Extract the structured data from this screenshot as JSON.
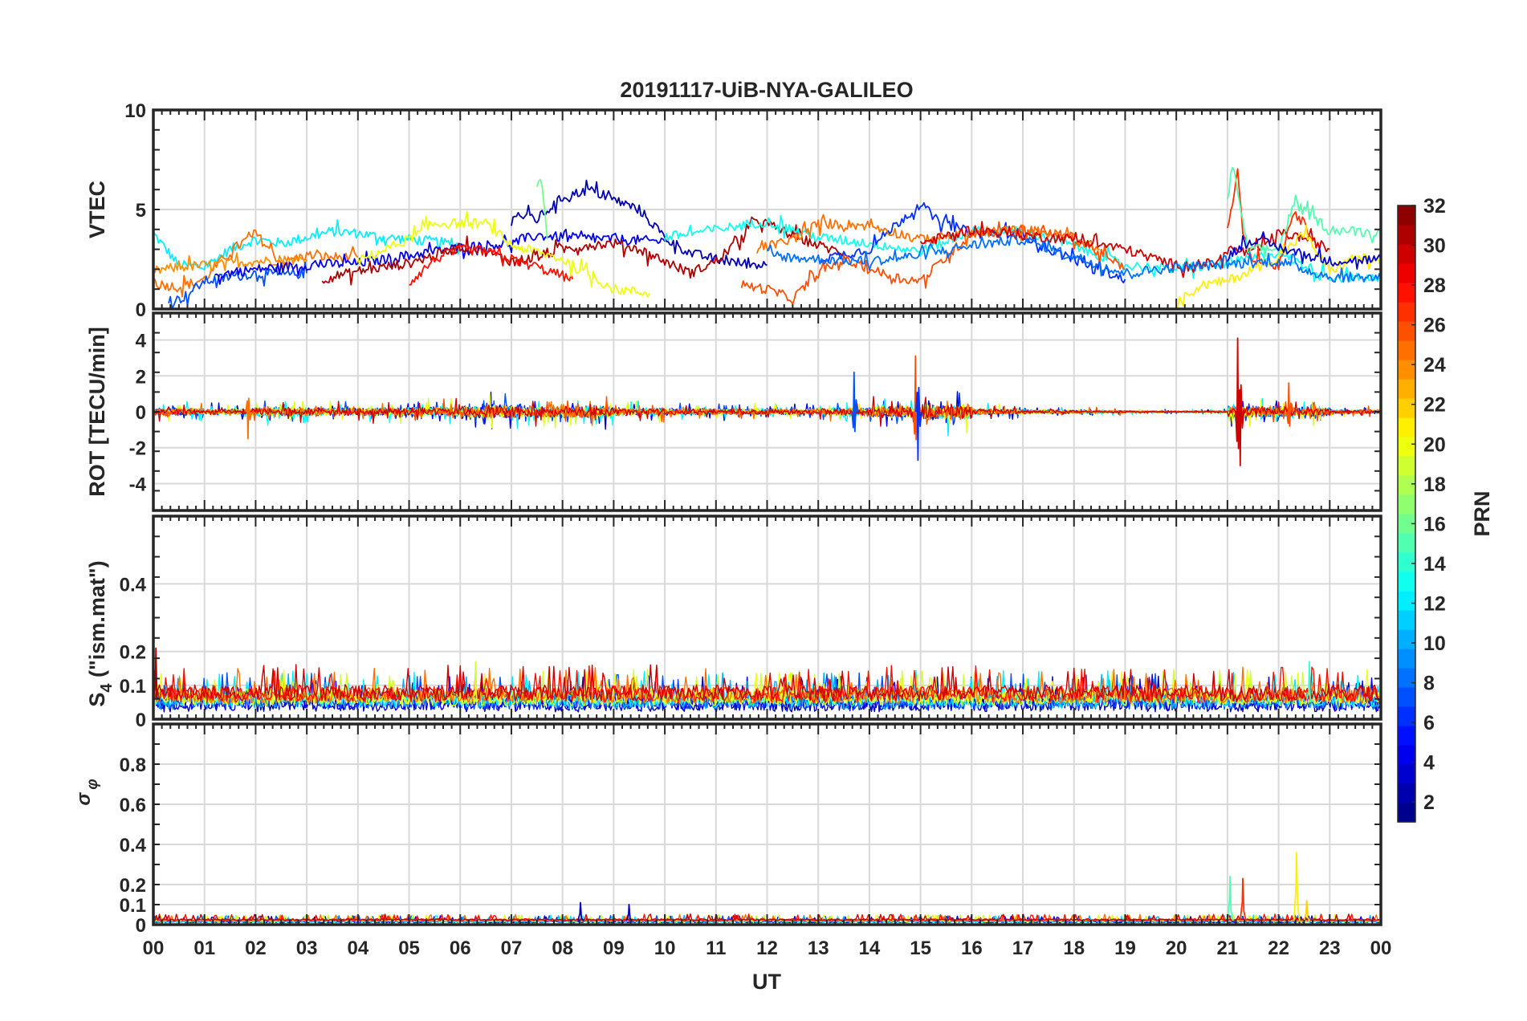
{
  "chart_data": {
    "type": "line",
    "title": "20191117-UiB-NYA-GALILEO",
    "xlabel": "UT",
    "xlim": [
      0,
      24
    ],
    "x_tick_labels": [
      "00",
      "01",
      "02",
      "03",
      "04",
      "05",
      "06",
      "07",
      "08",
      "09",
      "10",
      "11",
      "12",
      "13",
      "14",
      "15",
      "16",
      "17",
      "18",
      "19",
      "20",
      "21",
      "22",
      "23",
      "00"
    ],
    "grid": true,
    "colorbar": {
      "label": "PRN",
      "range": [
        1,
        32
      ],
      "levels": 32,
      "colormap": "jet",
      "ticks": [
        "2",
        "4",
        "6",
        "8",
        "10",
        "12",
        "14",
        "16",
        "18",
        "20",
        "22",
        "24",
        "26",
        "28",
        "30",
        "32"
      ]
    },
    "panels": [
      {
        "id": "vtec",
        "ylabel": "VTEC",
        "ylim": [
          0,
          10
        ],
        "yticks": [
          "0",
          "5",
          "10"
        ],
        "ytick_values": [
          0,
          5,
          10
        ],
        "series": [
          {
            "prn": 12,
            "x": [
              0,
              0.5,
              1,
              1.5,
              2,
              2.5,
              3,
              3.5,
              4,
              4.5,
              5,
              5.5,
              6
            ],
            "y": [
              3.8,
              2.2,
              2.1,
              3.0,
              3.5,
              3.3,
              3.6,
              3.9,
              3.8,
              3.6,
              3.5,
              3.4,
              3.2
            ]
          },
          {
            "prn": 25,
            "x": [
              0,
              0.5,
              1,
              1.5,
              2,
              2.5,
              3,
              3.5,
              4
            ],
            "y": [
              1.3,
              1.1,
              1.5,
              2.9,
              3.8,
              2.3,
              2.7,
              2.6,
              2.6
            ]
          },
          {
            "prn": 24,
            "x": [
              0,
              0.5,
              1,
              1.5,
              2,
              3
            ],
            "y": [
              1.9,
              2.1,
              2.2,
              2.3,
              2.4,
              2.5
            ]
          },
          {
            "prn": 7,
            "x": [
              0.3,
              0.6,
              1,
              1.5,
              2,
              2.5,
              3
            ],
            "y": [
              0.3,
              0.6,
              1.4,
              1.6,
              1.8,
              1.7,
              1.8
            ]
          },
          {
            "prn": 4,
            "x": [
              1.2,
              2,
              3,
              4,
              5,
              6,
              7,
              7.5,
              8,
              9,
              10
            ],
            "y": [
              1.7,
              2.0,
              2.2,
              2.3,
              2.7,
              3.1,
              3.3,
              3.7,
              3.6,
              3.5,
              3.4
            ]
          },
          {
            "prn": 2,
            "x": [
              7,
              7.5,
              8,
              8.5,
              9,
              9.5,
              10,
              10.5,
              11,
              11.5,
              12
            ],
            "y": [
              4.8,
              4.5,
              5.6,
              6.0,
              5.5,
              5.0,
              3.6,
              2.8,
              2.5,
              2.3,
              2.2
            ]
          },
          {
            "prn": 31,
            "x": [
              3.3,
              4,
              5,
              6,
              6.5,
              7,
              7.5,
              8,
              8.5,
              9,
              9.5,
              10,
              10.5,
              11,
              11.5,
              11.8,
              12.5,
              13,
              13.5
            ],
            "y": [
              1.5,
              1.9,
              2.3,
              3.1,
              2.9,
              2.4,
              2.6,
              3.0,
              3.2,
              3.3,
              3.0,
              2.4,
              1.8,
              2.4,
              3.6,
              4.5,
              3.7,
              3.2,
              2.8
            ]
          },
          {
            "prn": 28,
            "x": [
              5,
              5.5,
              6,
              6.5,
              7,
              7.5,
              8.2
            ],
            "y": [
              1.3,
              2.5,
              3.0,
              2.9,
              2.5,
              2.1,
              1.5
            ]
          },
          {
            "prn": 20,
            "x": [
              4,
              5,
              5.5,
              6.5,
              7,
              8,
              9,
              9.7
            ],
            "y": [
              2.4,
              3.5,
              4.3,
              4.3,
              3.2,
              2.5,
              1.0,
              0.8
            ]
          },
          {
            "prn": 16,
            "x": [
              7.5,
              7.6,
              7.7
            ],
            "y": [
              6.3,
              6.4,
              3.5
            ]
          },
          {
            "prn": 13,
            "x": [
              10,
              11,
              12,
              13,
              14,
              15,
              16,
              17,
              18,
              19,
              20,
              21,
              22,
              23,
              24
            ],
            "y": [
              3.6,
              4.0,
              4.4,
              3.6,
              3.3,
              2.9,
              3.9,
              3.9,
              3.2,
              2.2,
              2.0,
              2.3,
              2.8,
              1.6,
              1.5
            ]
          },
          {
            "prn": 6,
            "x": [
              13,
              14,
              14.5,
              15,
              15.3,
              16,
              17,
              17.5,
              18,
              19
            ],
            "y": [
              2.5,
              3.0,
              4.2,
              5.3,
              4.5,
              3.8,
              3.8,
              3.0,
              2.5,
              1.5
            ]
          },
          {
            "prn": 26,
            "x": [
              11.5,
              12,
              12.5,
              13,
              13.5,
              14,
              14.5,
              15,
              16,
              17,
              18,
              19
            ],
            "y": [
              1.2,
              1.0,
              0.5,
              1.8,
              2.5,
              2.0,
              1.6,
              1.4,
              3.8,
              4.0,
              3.6,
              2.0
            ]
          },
          {
            "prn": 25,
            "x": [
              11.8,
              12.5,
              13,
              14,
              15,
              16,
              17,
              18,
              18.5
            ],
            "y": [
              3.0,
              3.5,
              4.3,
              4.2,
              3.5,
              3.8,
              4.0,
              3.6,
              3.0
            ]
          },
          {
            "prn": 30,
            "x": [
              15,
              16,
              17,
              18,
              19,
              20,
              20.8,
              21,
              21.5,
              22,
              22.5,
              23
            ],
            "y": [
              3.3,
              4.0,
              3.7,
              3.5,
              3.0,
              2.2,
              2.3,
              3.0,
              2.8,
              3.8,
              3.6,
              3.0
            ]
          },
          {
            "prn": 27,
            "x": [
              21,
              21.2,
              21.3,
              21.5,
              22,
              22.3,
              22.7
            ],
            "y": [
              4.0,
              7.0,
              4.0,
              2.5,
              2.2,
              5.0,
              3.5
            ]
          },
          {
            "prn": 21,
            "x": [
              20,
              20.5,
              21,
              22,
              22.5,
              23,
              23.5,
              24
            ],
            "y": [
              0.3,
              1.2,
              1.4,
              2.6,
              3.8,
              1.9,
              2.6,
              2.4
            ]
          },
          {
            "prn": 15,
            "x": [
              21,
              21.1,
              21.4,
              22,
              22.3,
              23,
              24
            ],
            "y": [
              5.5,
              7.2,
              3.0,
              3.0,
              5.3,
              4.0,
              3.8
            ]
          },
          {
            "prn": 3,
            "x": [
              21,
              21.5,
              22,
              23,
              24
            ],
            "y": [
              2.7,
              3.5,
              3.1,
              2.4,
              2.5
            ]
          },
          {
            "prn": 8,
            "x": [
              12,
              13,
              14,
              15,
              16,
              17,
              19,
              20,
              22,
              23,
              24
            ],
            "y": [
              2.7,
              2.5,
              2.4,
              2.7,
              3.2,
              3.5,
              1.8,
              2.1,
              2.4,
              1.6,
              1.6
            ]
          }
        ]
      },
      {
        "id": "rot",
        "ylabel": "ROT [TECU/min]",
        "ylim": [
          -5.5,
          5.5
        ],
        "yticks": [
          "-4",
          "-2",
          "0",
          "2",
          "4"
        ],
        "ytick_values": [
          -4,
          -2,
          0,
          2,
          4
        ],
        "hourly_amplitude": [
          0.4,
          0.3,
          0.5,
          0.4,
          0.4,
          0.5,
          0.7,
          0.6,
          0.6,
          0.4,
          0.3,
          0.3,
          0.3,
          0.4,
          0.6,
          0.8,
          0.3,
          0.2,
          0.15,
          0.1,
          0.1,
          0.6,
          0.5,
          0.2
        ],
        "spikes": [
          {
            "x": 1.85,
            "y": -1.5,
            "prn": 25
          },
          {
            "x": 13.7,
            "y": 2.2,
            "prn": 7
          },
          {
            "x": 14.9,
            "y": 3.1,
            "prn": 26
          },
          {
            "x": 14.95,
            "y": -2.7,
            "prn": 6
          },
          {
            "x": 21.2,
            "y": 4.1,
            "prn": 30
          },
          {
            "x": 21.25,
            "y": -3.0,
            "prn": 30
          },
          {
            "x": 22.2,
            "y": 1.6,
            "prn": 26
          }
        ]
      },
      {
        "id": "s4",
        "ylabel_main": "S",
        "ylabel_sub": "4",
        "ylabel_rest": " (\"ism.mat\")",
        "ylim": [
          0,
          0.6
        ],
        "yticks": [
          "0",
          "0.1",
          "0.2",
          "0.4"
        ],
        "ytick_values": [
          0,
          0.1,
          0.2,
          0.4
        ],
        "baseline": 0.06,
        "spikes": [
          {
            "x": 0.05,
            "y": 0.21,
            "prn": 31
          },
          {
            "x": 6.3,
            "y": 0.17,
            "prn": 19
          },
          {
            "x": 22.6,
            "y": 0.17,
            "prn": 14
          }
        ]
      },
      {
        "id": "sigma_phi",
        "ylabel_main": "σ",
        "ylabel_sub": "φ",
        "ylim": [
          0,
          1
        ],
        "yticks": [
          "0",
          "0.1",
          "0.2",
          "0.4",
          "0.6",
          "0.8"
        ],
        "ytick_values": [
          0,
          0.1,
          0.2,
          0.4,
          0.6,
          0.8
        ],
        "baseline": 0.02,
        "spikes": [
          {
            "x": 8.35,
            "y": 0.11,
            "prn": 2
          },
          {
            "x": 9.3,
            "y": 0.1,
            "prn": 2
          },
          {
            "x": 21.05,
            "y": 0.24,
            "prn": 15
          },
          {
            "x": 21.3,
            "y": 0.23,
            "prn": 27
          },
          {
            "x": 22.35,
            "y": 0.36,
            "prn": 21
          },
          {
            "x": 22.55,
            "y": 0.12,
            "prn": 22
          }
        ]
      }
    ]
  }
}
